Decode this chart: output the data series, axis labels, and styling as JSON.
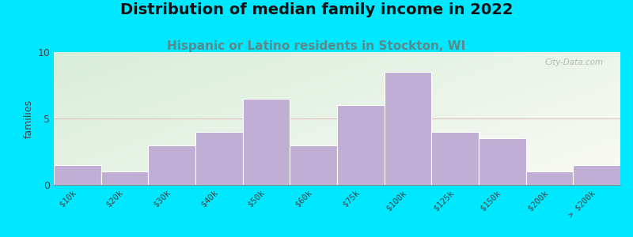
{
  "title": "Distribution of median family income in 2022",
  "subtitle": "Hispanic or Latino residents in Stockton, WI",
  "ylabel": "families",
  "categories": [
    "$10k",
    "$20k",
    "$30k",
    "$40k",
    "$50k",
    "$60k",
    "$75k",
    "$100k",
    "$125k",
    "$150k",
    "$200k",
    "> $200k"
  ],
  "values": [
    1.5,
    1.0,
    3.0,
    4.0,
    6.5,
    3.0,
    6.0,
    8.5,
    4.0,
    3.5,
    1.0,
    1.5
  ],
  "bar_color": "#c0aed4",
  "bar_edgecolor": "#ffffff",
  "ylim": [
    0,
    10
  ],
  "yticks": [
    0,
    5,
    10
  ],
  "bg_outer": "#00e8ff",
  "bg_inner_topleft": "#d8edda",
  "bg_inner_bottomright": "#f0f5ec",
  "title_fontsize": 14,
  "subtitle_fontsize": 11,
  "subtitle_color": "#5a8a8a",
  "watermark": "City-Data.com"
}
